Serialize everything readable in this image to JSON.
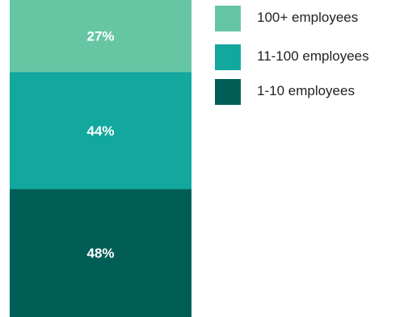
{
  "chart_data": {
    "type": "bar",
    "stacked": true,
    "categories": [
      ""
    ],
    "series": [
      {
        "name": "1-10 employees",
        "values": [
          48
        ],
        "label": "48%",
        "color": "#005e57"
      },
      {
        "name": "11-100 employees",
        "values": [
          44
        ],
        "label": "44%",
        "color": "#13a89e"
      },
      {
        "name": "100+ employees",
        "values": [
          27
        ],
        "label": "27%",
        "color": "#66c6a4"
      }
    ],
    "legend_order": [
      "100+ employees",
      "11-100 employees",
      "1-10 employees"
    ],
    "title": "",
    "xlabel": "",
    "ylabel": "",
    "grid": false,
    "legend_position": "top-right"
  }
}
